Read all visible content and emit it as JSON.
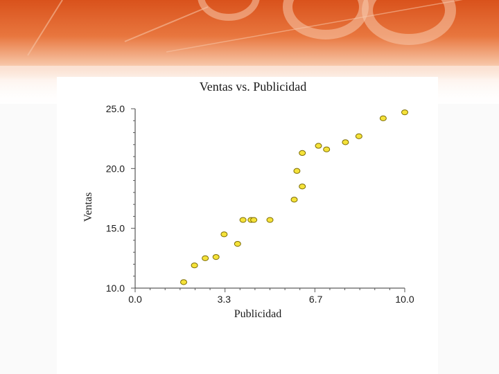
{
  "chart_data": {
    "type": "scatter",
    "title": "Ventas vs. Publicidad",
    "xlabel": "Publicidad",
    "ylabel": "Ventas",
    "xlim": [
      0.0,
      10.0
    ],
    "ylim": [
      10.0,
      25.0
    ],
    "x_ticks": [
      "0.0",
      "3.3",
      "6.7",
      "10.0"
    ],
    "y_ticks": [
      "10.0",
      "15.0",
      "20.0",
      "25.0"
    ],
    "grid": false,
    "legend": "none",
    "marker_color": "#f5e23a",
    "marker_edge": "#7a6a00",
    "points": [
      {
        "x": 1.8,
        "y": 10.5
      },
      {
        "x": 2.2,
        "y": 11.9
      },
      {
        "x": 2.6,
        "y": 12.5
      },
      {
        "x": 3.0,
        "y": 12.6
      },
      {
        "x": 3.3,
        "y": 14.5
      },
      {
        "x": 3.8,
        "y": 13.7
      },
      {
        "x": 4.0,
        "y": 15.7
      },
      {
        "x": 4.3,
        "y": 15.7
      },
      {
        "x": 4.4,
        "y": 15.7
      },
      {
        "x": 5.0,
        "y": 15.7
      },
      {
        "x": 5.9,
        "y": 17.4
      },
      {
        "x": 6.0,
        "y": 19.8
      },
      {
        "x": 6.2,
        "y": 18.5
      },
      {
        "x": 6.2,
        "y": 21.3
      },
      {
        "x": 6.8,
        "y": 21.9
      },
      {
        "x": 7.1,
        "y": 21.6
      },
      {
        "x": 7.8,
        "y": 22.2
      },
      {
        "x": 8.3,
        "y": 22.7
      },
      {
        "x": 9.2,
        "y": 24.2
      },
      {
        "x": 10.0,
        "y": 24.7
      }
    ]
  }
}
